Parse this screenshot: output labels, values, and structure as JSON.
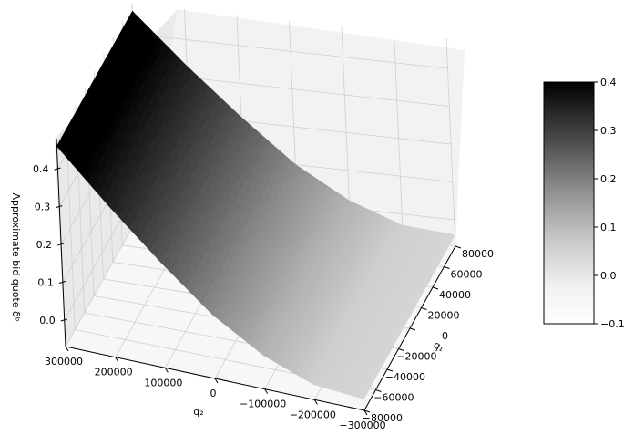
{
  "chart_data": {
    "type": "surface3d",
    "title": "",
    "x": {
      "label": "q₁",
      "range": [
        -80000,
        80000
      ],
      "ticks": [
        -80000,
        -60000,
        -40000,
        -20000,
        0,
        20000,
        40000,
        60000,
        80000
      ],
      "tick_labels": [
        "−80000",
        "−60000",
        "−40000",
        "−20000",
        "0",
        "20000",
        "40000",
        "60000",
        "80000"
      ]
    },
    "y": {
      "label": "q₂",
      "range": [
        -300000,
        300000
      ],
      "ticks": [
        300000,
        200000,
        100000,
        0,
        -100000,
        -200000,
        -300000
      ],
      "tick_labels": [
        "300000",
        "200000",
        "100000",
        "0",
        "−100000",
        "−200000",
        "−300000"
      ]
    },
    "z": {
      "label": "Approximate bid quote δᵇ",
      "range": [
        -0.07,
        0.48
      ],
      "ticks": [
        0.0,
        0.1,
        0.2,
        0.3,
        0.4
      ],
      "tick_labels": [
        "0.0",
        "0.1",
        "0.2",
        "0.3",
        "0.4"
      ]
    },
    "surface": {
      "q2": [
        -300000,
        -200000,
        -100000,
        0,
        100000,
        200000,
        300000
      ],
      "bid_quote": [
        -0.04,
        -0.03,
        0.02,
        0.1,
        0.21,
        0.33,
        0.46
      ]
    },
    "colorbar": {
      "range": [
        -0.1,
        0.4
      ],
      "ticks": [
        -0.1,
        0.0,
        0.1,
        0.2,
        0.3,
        0.4
      ],
      "tick_labels": [
        "−0.1",
        "0.0",
        "0.1",
        "0.2",
        "0.3",
        "0.4"
      ],
      "colormap": "Greys",
      "color_low": "#ffffff",
      "color_high": "#000000"
    },
    "grid": true
  }
}
